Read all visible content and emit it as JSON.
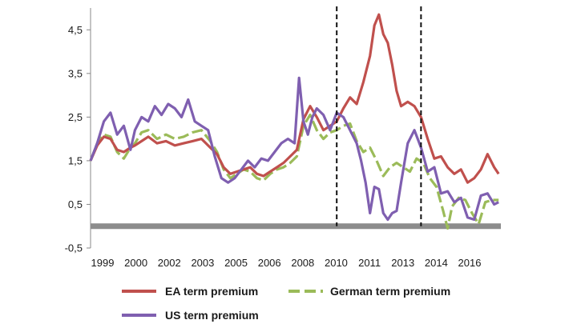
{
  "chart_data": {
    "type": "line",
    "title": "",
    "xlabel": "",
    "ylabel": "",
    "ylim": [
      -0.5,
      5.0
    ],
    "xlim": [
      1999.0,
      2017.5
    ],
    "y_ticks": [
      "4,5",
      "3,5",
      "2,5",
      "1,5",
      "0,5",
      "-0,5"
    ],
    "x_ticks": [
      "1999",
      "2000",
      "2002",
      "2003",
      "2005",
      "2006",
      "2008",
      "2010",
      "2011",
      "2013",
      "2014",
      "2016"
    ],
    "zero_line": 0.0,
    "vlines": [
      2010.1,
      2013.9
    ],
    "series": [
      {
        "name": "EA term premium",
        "color": "#c0504d",
        "dash": "solid",
        "x": [
          1999.0,
          1999.3,
          1999.6,
          1999.9,
          2000.2,
          2000.5,
          2000.8,
          2001.0,
          2001.3,
          2001.6,
          2002.0,
          2002.4,
          2002.8,
          2003.2,
          2003.6,
          2004.0,
          2004.4,
          2004.7,
          2005.0,
          2005.3,
          2005.6,
          2005.9,
          2006.2,
          2006.5,
          2006.8,
          2007.1,
          2007.4,
          2007.7,
          2008.0,
          2008.3,
          2008.6,
          2008.9,
          2009.2,
          2009.5,
          2009.8,
          2010.1,
          2010.4,
          2010.7,
          2011.0,
          2011.3,
          2011.6,
          2011.8,
          2012.0,
          2012.2,
          2012.4,
          2012.6,
          2012.8,
          2013.0,
          2013.3,
          2013.6,
          2013.9,
          2014.2,
          2014.5,
          2014.8,
          2015.1,
          2015.4,
          2015.7,
          2016.0,
          2016.3,
          2016.6,
          2016.9,
          2017.2,
          2017.4
        ],
        "values": [
          1.5,
          1.85,
          2.05,
          2.0,
          1.75,
          1.7,
          1.8,
          1.85,
          1.95,
          2.05,
          1.9,
          1.95,
          1.85,
          1.9,
          1.95,
          2.0,
          1.8,
          1.65,
          1.35,
          1.2,
          1.25,
          1.3,
          1.35,
          1.2,
          1.15,
          1.25,
          1.35,
          1.45,
          1.6,
          1.75,
          2.45,
          2.75,
          2.5,
          2.2,
          2.3,
          2.4,
          2.7,
          2.95,
          2.8,
          3.3,
          3.9,
          4.6,
          4.85,
          4.4,
          4.2,
          3.7,
          3.1,
          2.75,
          2.85,
          2.75,
          2.5,
          2.0,
          1.55,
          1.6,
          1.35,
          1.2,
          1.3,
          1.0,
          1.1,
          1.3,
          1.65,
          1.35,
          1.2
        ]
      },
      {
        "name": "German term premium",
        "color": "#9bbb59",
        "dash": "dashed",
        "x": [
          1999.0,
          1999.3,
          1999.6,
          1999.9,
          2000.2,
          2000.5,
          2000.8,
          2001.0,
          2001.3,
          2001.6,
          2002.0,
          2002.4,
          2002.8,
          2003.2,
          2003.6,
          2004.0,
          2004.4,
          2004.7,
          2005.0,
          2005.3,
          2005.6,
          2005.9,
          2006.2,
          2006.5,
          2006.8,
          2007.1,
          2007.4,
          2007.7,
          2008.0,
          2008.3,
          2008.6,
          2008.9,
          2009.2,
          2009.5,
          2009.8,
          2010.1,
          2010.4,
          2010.7,
          2011.0,
          2011.3,
          2011.6,
          2011.9,
          2012.2,
          2012.5,
          2012.8,
          2013.1,
          2013.4,
          2013.7,
          2014.0,
          2014.3,
          2014.6,
          2014.9,
          2015.1,
          2015.3,
          2015.6,
          2015.9,
          2016.2,
          2016.5,
          2016.8,
          2017.1,
          2017.4
        ],
        "values": [
          1.5,
          1.9,
          2.1,
          2.05,
          1.7,
          1.55,
          1.8,
          1.9,
          2.15,
          2.2,
          2.0,
          2.1,
          2.0,
          2.05,
          2.15,
          2.2,
          1.95,
          1.7,
          1.3,
          1.1,
          1.2,
          1.3,
          1.25,
          1.1,
          1.05,
          1.2,
          1.3,
          1.35,
          1.45,
          1.6,
          2.3,
          2.55,
          2.2,
          2.0,
          2.15,
          2.2,
          2.3,
          2.35,
          1.95,
          1.7,
          1.8,
          1.5,
          1.15,
          1.35,
          1.45,
          1.35,
          1.25,
          1.55,
          1.45,
          1.1,
          0.9,
          0.35,
          -0.05,
          0.45,
          0.65,
          0.6,
          0.3,
          0.05,
          0.55,
          0.6,
          0.6
        ]
      },
      {
        "name": "US term premium",
        "color": "#7f5fb0",
        "dash": "solid",
        "x": [
          1999.0,
          1999.3,
          1999.6,
          1999.9,
          2000.2,
          2000.5,
          2000.8,
          2001.0,
          2001.3,
          2001.6,
          2001.9,
          2002.2,
          2002.5,
          2002.8,
          2003.1,
          2003.4,
          2003.7,
          2004.0,
          2004.3,
          2004.6,
          2004.9,
          2005.2,
          2005.5,
          2005.8,
          2006.1,
          2006.4,
          2006.7,
          2007.0,
          2007.3,
          2007.6,
          2007.9,
          2008.2,
          2008.4,
          2008.6,
          2008.8,
          2009.0,
          2009.2,
          2009.5,
          2009.8,
          2010.1,
          2010.4,
          2010.7,
          2011.0,
          2011.2,
          2011.4,
          2011.6,
          2011.8,
          2012.0,
          2012.2,
          2012.4,
          2012.6,
          2012.8,
          2013.0,
          2013.3,
          2013.6,
          2013.9,
          2014.2,
          2014.5,
          2014.8,
          2015.1,
          2015.4,
          2015.7,
          2016.0,
          2016.3,
          2016.6,
          2016.9,
          2017.2,
          2017.4
        ],
        "values": [
          1.5,
          1.9,
          2.4,
          2.6,
          2.1,
          2.3,
          1.75,
          2.2,
          2.5,
          2.4,
          2.75,
          2.55,
          2.8,
          2.7,
          2.5,
          2.9,
          2.4,
          2.3,
          2.2,
          1.6,
          1.1,
          1.0,
          1.1,
          1.3,
          1.5,
          1.35,
          1.55,
          1.5,
          1.7,
          1.9,
          2.0,
          1.9,
          3.4,
          2.4,
          2.1,
          2.5,
          2.7,
          2.55,
          2.2,
          2.6,
          2.5,
          2.2,
          1.9,
          1.5,
          1.0,
          0.3,
          0.9,
          0.85,
          0.3,
          0.15,
          0.3,
          0.35,
          1.0,
          1.9,
          2.2,
          1.8,
          1.25,
          1.35,
          0.75,
          0.8,
          0.55,
          0.65,
          0.2,
          0.15,
          0.7,
          0.75,
          0.5,
          0.55
        ]
      }
    ]
  }
}
